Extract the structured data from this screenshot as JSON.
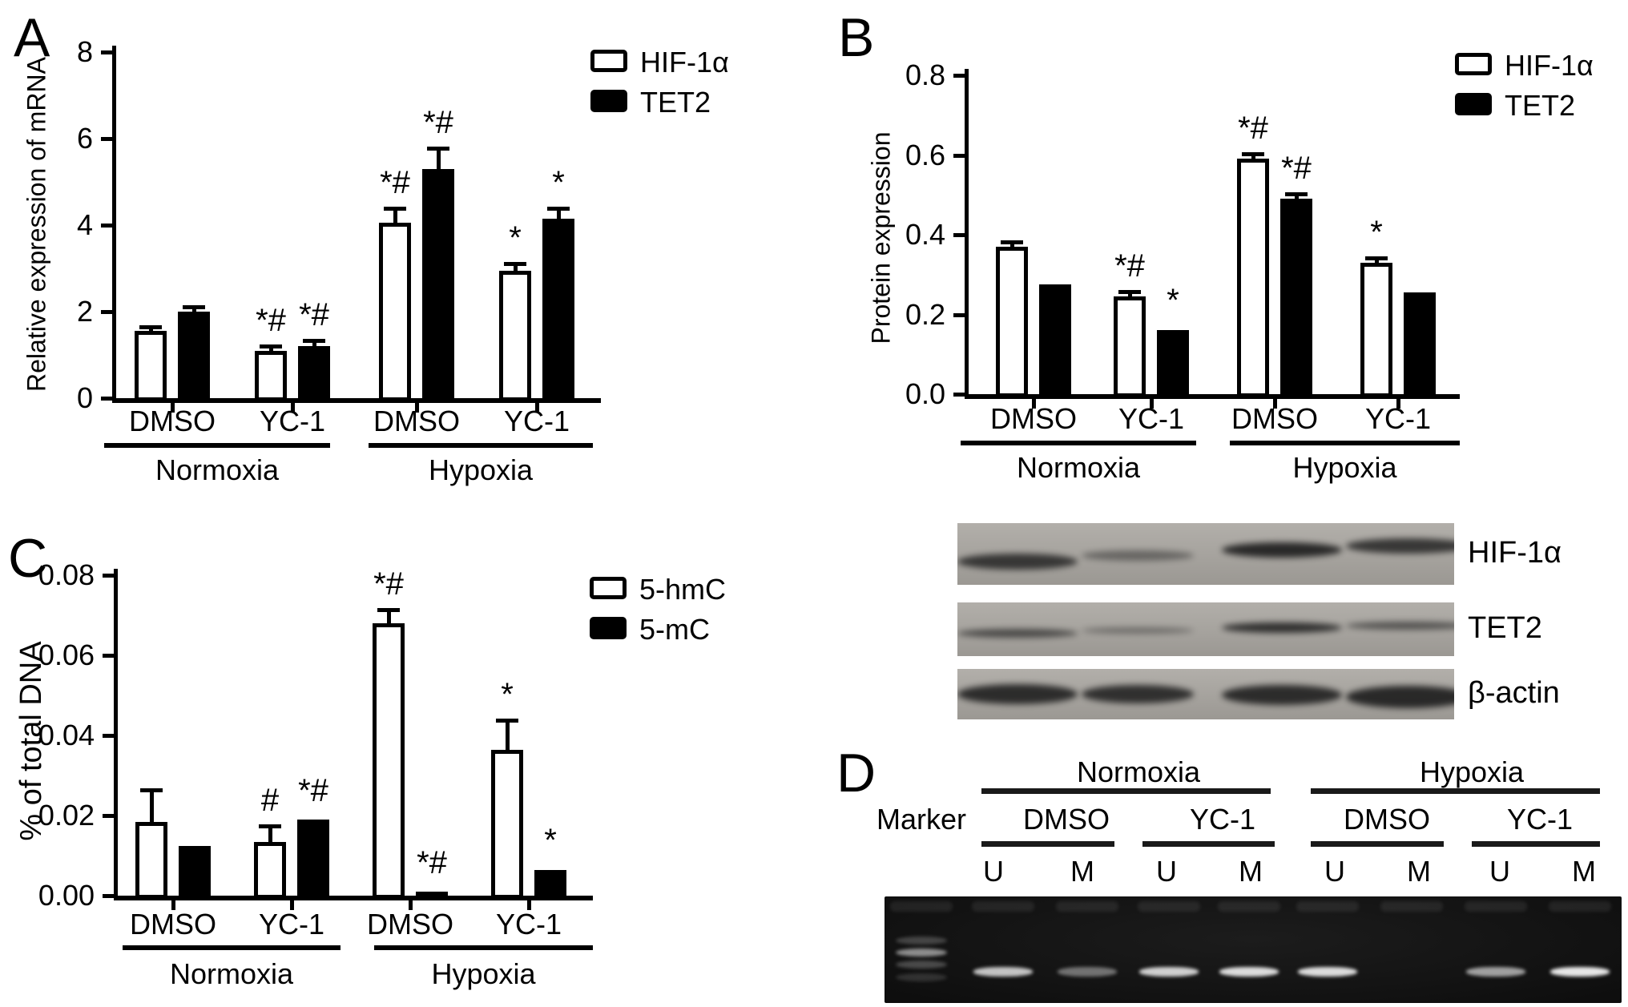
{
  "figure": {
    "background": "#ffffff",
    "foreground": "#000000"
  },
  "panels": {
    "a": {
      "letter": "A"
    },
    "b": {
      "letter": "B"
    },
    "c": {
      "letter": "C"
    },
    "d": {
      "letter": "D"
    }
  },
  "chart_data": [
    {
      "panel": "A",
      "type": "grouped-bar",
      "title": "",
      "ylabel": "Relative expression of mRNA",
      "ylim": [
        0,
        8
      ],
      "yticks": [
        "0",
        "2",
        "4",
        "6",
        "8"
      ],
      "ytick_values": [
        0,
        2,
        4,
        6,
        8
      ],
      "legend_position": "top-right",
      "grid": false,
      "categories": [
        "Normoxia DMSO",
        "Normoxia YC-1",
        "Hypoxia DMSO",
        "Hypoxia YC-1"
      ],
      "group_labels": [
        "DMSO",
        "YC-1",
        "DMSO",
        "YC-1"
      ],
      "conditions": [
        "Normoxia",
        "Hypoxia"
      ],
      "series": [
        {
          "name": "HIF-1α",
          "fill": "#ffffff",
          "values": [
            1.55,
            1.1,
            4.05,
            2.95
          ],
          "errors": [
            0.07,
            0.06,
            0.3,
            0.12
          ],
          "annotations": [
            "",
            "*#",
            "*#",
            "*"
          ]
        },
        {
          "name": "TET2",
          "fill": "#000000",
          "values": [
            2.0,
            1.2,
            5.3,
            4.15
          ],
          "errors": [
            0.08,
            0.1,
            0.45,
            0.2
          ],
          "annotations": [
            "",
            "*#",
            "*#",
            "*"
          ]
        }
      ]
    },
    {
      "panel": "B",
      "type": "grouped-bar",
      "title": "",
      "ylabel": "Protein expression",
      "ylim": [
        0,
        0.8
      ],
      "yticks": [
        "0.0",
        "0.2",
        "0.4",
        "0.6",
        "0.8"
      ],
      "ytick_values": [
        0,
        0.2,
        0.4,
        0.6,
        0.8
      ],
      "legend_position": "top-right",
      "grid": false,
      "categories": [
        "Normoxia DMSO",
        "Normoxia YC-1",
        "Hypoxia DMSO",
        "Hypoxia YC-1"
      ],
      "group_labels": [
        "DMSO",
        "YC-1",
        "DMSO",
        "YC-1"
      ],
      "conditions": [
        "Normoxia",
        "Hypoxia"
      ],
      "series": [
        {
          "name": "HIF-1α",
          "fill": "#ffffff",
          "values": [
            0.37,
            0.245,
            0.59,
            0.33
          ],
          "errors": [
            0.008,
            0.008,
            0.008,
            0.008
          ],
          "annotations": [
            "",
            "*#",
            "*#",
            "*"
          ]
        },
        {
          "name": "TET2",
          "fill": "#000000",
          "values": [
            0.275,
            0.16,
            0.49,
            0.255
          ],
          "errors": [
            0.006,
            0.006,
            0.008,
            0.005
          ],
          "annotations": [
            "",
            "*",
            "*#",
            ""
          ]
        }
      ]
    },
    {
      "panel": "C",
      "type": "grouped-bar",
      "title": "",
      "ylabel": "% of total DNA",
      "ylim": [
        0,
        0.08
      ],
      "yticks": [
        "0.00",
        "0.02",
        "0.04",
        "0.06",
        "0.08"
      ],
      "ytick_values": [
        0,
        0.02,
        0.04,
        0.06,
        0.08
      ],
      "legend_position": "top-right",
      "grid": false,
      "categories": [
        "Normoxia DMSO",
        "Normoxia YC-1",
        "Hypoxia DMSO",
        "Hypoxia YC-1"
      ],
      "group_labels": [
        "DMSO",
        "YC-1",
        "DMSO",
        "YC-1"
      ],
      "conditions": [
        "Normoxia",
        "Hypoxia"
      ],
      "series": [
        {
          "name": "5-hmC",
          "fill": "#ffffff",
          "values": [
            0.0185,
            0.0135,
            0.068,
            0.0365
          ],
          "errors": [
            0.0075,
            0.0035,
            0.003,
            0.007
          ],
          "annotations": [
            "",
            "#",
            "*#",
            "*"
          ]
        },
        {
          "name": "5-mC",
          "fill": "#000000",
          "values": [
            0.0125,
            0.019,
            0.001,
            0.0065
          ],
          "errors": [
            0.0005,
            0.0005,
            0.0005,
            0.0005
          ],
          "annotations": [
            "",
            "*#",
            "*#",
            "*"
          ]
        }
      ]
    }
  ],
  "western_blot": {
    "rows": [
      {
        "label": "HIF-1α",
        "band_intensities": [
          0.8,
          0.45,
          0.9,
          0.8
        ]
      },
      {
        "label": "TET2",
        "band_intensities": [
          0.65,
          0.4,
          0.85,
          0.6
        ]
      },
      {
        "label": "β-actin",
        "band_intensities": [
          0.88,
          0.85,
          0.88,
          0.9
        ]
      }
    ],
    "lanes_per_row": 4
  },
  "gel": {
    "marker_label": "Marker",
    "condition_labels": [
      "Normoxia",
      "Hypoxia"
    ],
    "treatment_labels": [
      "DMSO",
      "YC-1",
      "DMSO",
      "YC-1"
    ],
    "lane_labels": [
      "U",
      "M",
      "U",
      "M",
      "U",
      "M",
      "U",
      "M"
    ],
    "sample_band_intensities": [
      0.75,
      0.4,
      0.8,
      0.85,
      0.85,
      0,
      0.6,
      0.9
    ],
    "marker_band_intensities": [
      0.28,
      0.7,
      0.32,
      0.18
    ]
  }
}
